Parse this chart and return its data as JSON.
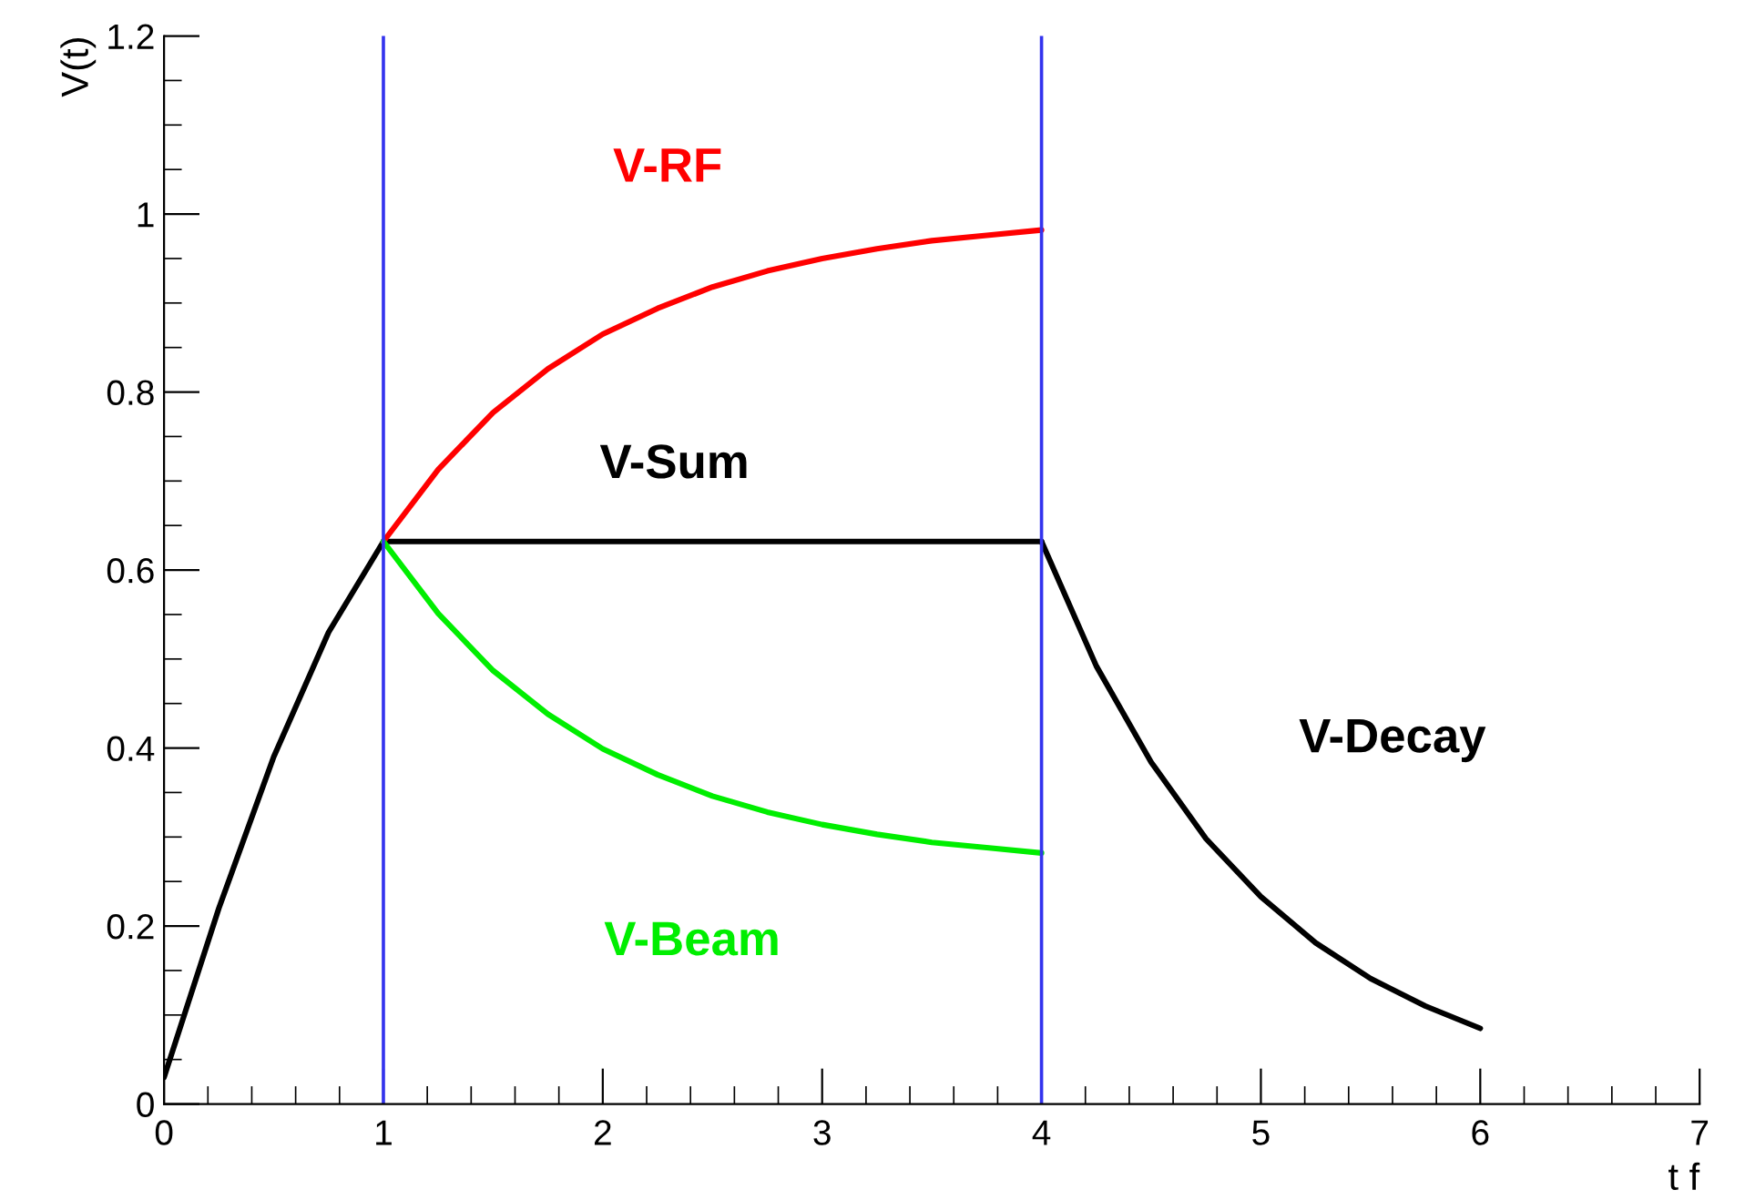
{
  "chart_data": {
    "type": "line",
    "xlabel": "t f",
    "ylabel": "V(t)",
    "xlim": [
      0,
      7
    ],
    "ylim": [
      0,
      1.2
    ],
    "xticks": [
      0,
      1,
      2,
      3,
      4,
      5,
      6,
      7
    ],
    "yticks": [
      0,
      0.2,
      0.4,
      0.6,
      0.8,
      1,
      1.2
    ],
    "grid": false,
    "marker": "none",
    "line_style": "solid",
    "series": [
      {
        "color": "#000000",
        "x": [
          0,
          0.25,
          0.5,
          0.75,
          1
        ],
        "values": [
          0.03,
          0.22,
          0.39,
          0.53,
          0.632
        ]
      },
      {
        "name": "V-Sum",
        "color": "#000000",
        "x": [
          1,
          4
        ],
        "values": [
          0.632,
          0.632
        ]
      },
      {
        "name": "V-Decay",
        "color": "#000000",
        "x": [
          4,
          4.25,
          4.5,
          4.75,
          5,
          5.25,
          5.5,
          5.75,
          6
        ],
        "values": [
          0.632,
          0.492,
          0.384,
          0.298,
          0.233,
          0.181,
          0.141,
          0.11,
          0.085
        ]
      },
      {
        "name": "V-RF",
        "color": "#ff0000",
        "x": [
          1,
          1.25,
          1.5,
          1.75,
          2,
          2.25,
          2.5,
          2.75,
          3,
          3.25,
          3.5,
          3.75,
          4
        ],
        "values": [
          0.632,
          0.713,
          0.777,
          0.826,
          0.865,
          0.894,
          0.918,
          0.936,
          0.95,
          0.961,
          0.97,
          0.976,
          0.982
        ]
      },
      {
        "name": "V-Beam",
        "color": "#00ee00",
        "x": [
          1,
          1.25,
          1.5,
          1.75,
          2,
          2.25,
          2.5,
          2.75,
          3,
          3.25,
          3.5,
          3.75,
          4
        ],
        "values": [
          0.632,
          0.551,
          0.487,
          0.438,
          0.399,
          0.37,
          0.346,
          0.328,
          0.314,
          0.303,
          0.294,
          0.288,
          0.282
        ]
      }
    ],
    "ref_lines": [
      {
        "axis": "x",
        "value": 1,
        "color": "#3333ee"
      },
      {
        "axis": "x",
        "value": 4,
        "color": "#3333ee"
      }
    ]
  }
}
